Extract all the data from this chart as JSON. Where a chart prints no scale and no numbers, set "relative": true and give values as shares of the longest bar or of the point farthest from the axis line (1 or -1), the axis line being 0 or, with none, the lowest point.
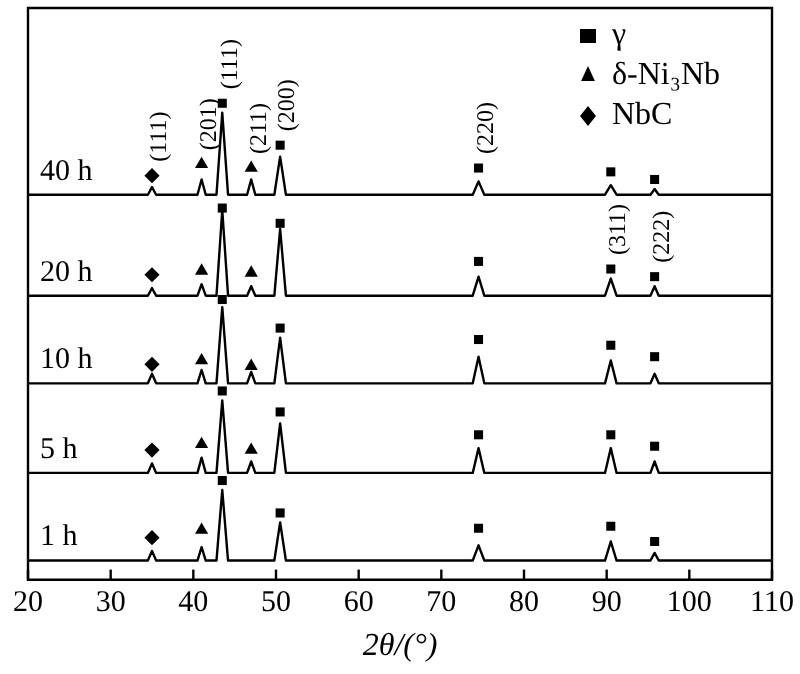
{
  "chart_data": {
    "type": "line",
    "relative": true,
    "xlabel": "2θ/(°)",
    "xlim": [
      20,
      110
    ],
    "xticks": [
      20,
      30,
      40,
      50,
      60,
      70,
      80,
      90,
      100,
      110
    ],
    "grid": false,
    "legend": "top right",
    "line_style": "solid",
    "marker": "none",
    "x": [
      20,
      34.5,
      35,
      35.5,
      40.5,
      41,
      41.5,
      42.8,
      43.5,
      44.2,
      46.5,
      47,
      47.5,
      49.8,
      50.5,
      51.2,
      73.8,
      74.5,
      75.2,
      89.8,
      90.5,
      91.2,
      95.3,
      95.8,
      96.3,
      110
    ],
    "series": [
      {
        "name": "40 h",
        "color": "#000000",
        "values": [
          0.808,
          0.808,
          0.824,
          0.808,
          0.808,
          0.84,
          0.808,
          0.808,
          0.98,
          0.808,
          0.808,
          0.84,
          0.808,
          0.808,
          0.888,
          0.808,
          0.808,
          0.836,
          0.808,
          0.808,
          0.828,
          0.808,
          0.808,
          0.82,
          0.808,
          0.808
        ]
      },
      {
        "name": "20 h",
        "color": "#000000",
        "values": [
          0.596,
          0.596,
          0.612,
          0.596,
          0.596,
          0.62,
          0.596,
          0.596,
          0.776,
          0.596,
          0.596,
          0.616,
          0.596,
          0.596,
          0.736,
          0.596,
          0.596,
          0.636,
          0.596,
          0.596,
          0.632,
          0.596,
          0.596,
          0.616,
          0.596,
          0.596
        ]
      },
      {
        "name": "10 h",
        "color": "#000000",
        "values": [
          0.412,
          0.412,
          0.432,
          0.412,
          0.412,
          0.44,
          0.412,
          0.412,
          0.572,
          0.412,
          0.412,
          0.436,
          0.412,
          0.412,
          0.508,
          0.412,
          0.412,
          0.468,
          0.412,
          0.412,
          0.46,
          0.412,
          0.412,
          0.432,
          0.412,
          0.412
        ]
      },
      {
        "name": "5 h",
        "color": "#000000",
        "values": [
          0.224,
          0.224,
          0.244,
          0.224,
          0.224,
          0.256,
          0.224,
          0.224,
          0.376,
          0.224,
          0.224,
          0.248,
          0.224,
          0.224,
          0.328,
          0.224,
          0.224,
          0.276,
          0.224,
          0.224,
          0.276,
          0.224,
          0.224,
          0.248,
          0.224,
          0.224
        ]
      },
      {
        "name": "1 h",
        "color": "#000000",
        "values": [
          0.04,
          0.04,
          0.06,
          0.04,
          0.04,
          0.068,
          0.04,
          0.04,
          0.188,
          0.04,
          0.04,
          0.04,
          0.04,
          0.04,
          0.12,
          0.04,
          0.04,
          0.072,
          0.04,
          0.04,
          0.08,
          0.04,
          0.04,
          0.056,
          0.04,
          0.04
        ]
      },
      {
        "name": "γ",
        "type": "scatter",
        "marker": "square",
        "color": "#000000",
        "x": [
          43.5,
          50.5,
          74.5,
          90.5,
          95.8,
          43.5,
          50.5,
          74.5,
          90.5,
          95.8,
          43.5,
          50.5,
          74.5,
          90.5,
          95.8,
          43.5,
          50.5,
          74.5,
          90.5,
          95.8,
          43.5,
          50.5,
          74.5,
          90.5,
          95.8
        ],
        "values": [
          1.0,
          0.912,
          0.864,
          0.856,
          0.84,
          0.78,
          0.748,
          0.668,
          0.652,
          0.636,
          0.588,
          0.528,
          0.504,
          0.492,
          0.468,
          0.396,
          0.352,
          0.304,
          0.304,
          0.28,
          0.208,
          0.14,
          0.108,
          0.112,
          0.08
        ]
      },
      {
        "name": "δ-Ni₃Nb",
        "type": "scatter",
        "marker": "triangle",
        "color": "#000000",
        "x": [
          41,
          47,
          41,
          47,
          41,
          47,
          41,
          47,
          41
        ],
        "values": [
          0.872,
          0.864,
          0.648,
          0.644,
          0.46,
          0.448,
          0.284,
          0.272,
          0.104
        ]
      },
      {
        "name": "NbC",
        "type": "scatter",
        "marker": "diamond",
        "color": "#000000",
        "x": [
          35,
          35,
          35,
          35,
          35
        ],
        "values": [
          0.848,
          0.64,
          0.452,
          0.272,
          0.088
        ]
      }
    ],
    "annotations": [
      {
        "text": "(111)",
        "x": 35,
        "y": 0.848
      },
      {
        "text": "(201)",
        "x": 41,
        "y": 0.872
      },
      {
        "text": "(111)",
        "x": 43.5,
        "y": 1.0
      },
      {
        "text": "(211)",
        "x": 47,
        "y": 0.864
      },
      {
        "text": "(200)",
        "x": 50.5,
        "y": 0.912
      },
      {
        "text": "(220)",
        "x": 74.5,
        "y": 0.864
      },
      {
        "text": "(311)",
        "x": 90.5,
        "y": 0.652
      },
      {
        "text": "(222)",
        "x": 95.8,
        "y": 0.636
      }
    ]
  }
}
